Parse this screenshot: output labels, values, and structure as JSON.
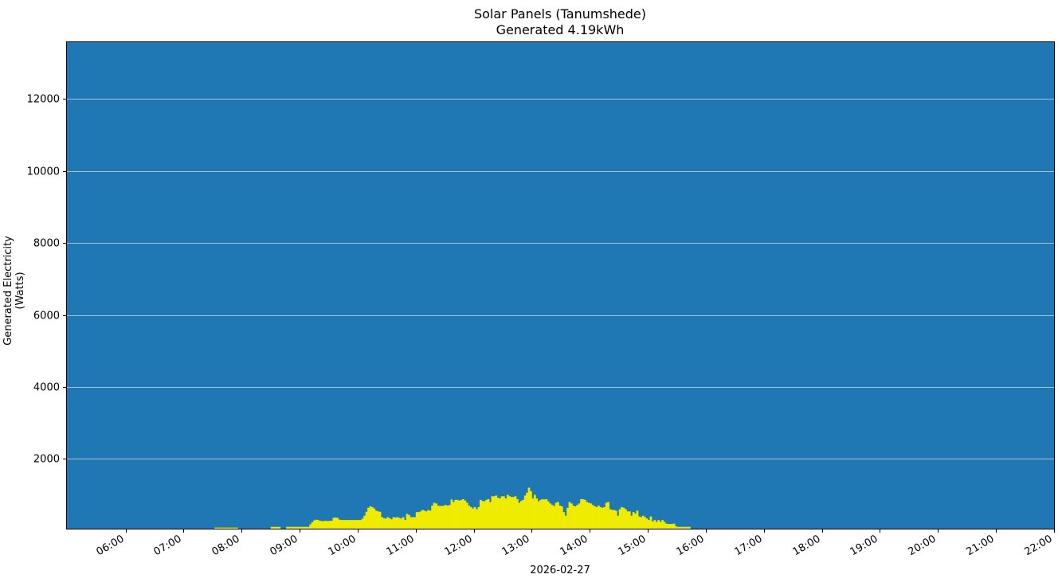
{
  "chart": {
    "title": "Solar Panels (Tanumshede)",
    "subtitle": "Generated 4.19kWh",
    "xlabel": "2026-02-27",
    "ylabel": "Generated Electricity (Watts)"
  },
  "colors": {
    "background": "#1f77b4",
    "bar": "#f0ec00",
    "bar_alt": "#f2e000",
    "grid": "#dcdcdc",
    "axis": "#000000"
  },
  "chart_data": {
    "type": "bar",
    "title": "Solar Panels (Tanumshede)\nGenerated 4.19kWh",
    "xlabel": "2026-02-27",
    "ylabel": "Generated Electricity (Watts)",
    "x_ticks": [
      "06:00",
      "07:00",
      "08:00",
      "09:00",
      "10:00",
      "11:00",
      "12:00",
      "13:00",
      "14:00",
      "15:00",
      "16:00",
      "17:00",
      "18:00",
      "19:00",
      "20:00",
      "21:00",
      "22:00"
    ],
    "y_ticks": [
      2000,
      4000,
      6000,
      8000,
      10000,
      12000
    ],
    "ylim": [
      60,
      13600
    ],
    "xlim": [
      "04:59",
      "22:00"
    ],
    "grid": "horizontal",
    "bar_width_minutes": 2,
    "series": [
      {
        "name": "Generated Electricity (Watts)",
        "points": [
          [
            "07:32",
            90
          ],
          [
            "07:34",
            90
          ],
          [
            "07:36",
            90
          ],
          [
            "07:38",
            90
          ],
          [
            "07:40",
            90
          ],
          [
            "07:42",
            90
          ],
          [
            "07:44",
            90
          ],
          [
            "07:46",
            90
          ],
          [
            "07:48",
            90
          ],
          [
            "07:50",
            90
          ],
          [
            "07:52",
            90
          ],
          [
            "07:54",
            90
          ],
          [
            "08:30",
            110
          ],
          [
            "08:32",
            110
          ],
          [
            "08:34",
            110
          ],
          [
            "08:36",
            110
          ],
          [
            "08:38",
            110
          ],
          [
            "08:46",
            110
          ],
          [
            "08:48",
            110
          ],
          [
            "08:50",
            110
          ],
          [
            "08:52",
            110
          ],
          [
            "08:54",
            110
          ],
          [
            "08:56",
            110
          ],
          [
            "08:58",
            110
          ],
          [
            "09:00",
            110
          ],
          [
            "09:02",
            110
          ],
          [
            "09:04",
            110
          ],
          [
            "09:06",
            110
          ],
          [
            "09:08",
            110
          ],
          [
            "09:10",
            180
          ],
          [
            "09:12",
            240
          ],
          [
            "09:14",
            290
          ],
          [
            "09:16",
            310
          ],
          [
            "09:18",
            300
          ],
          [
            "09:20",
            280
          ],
          [
            "09:22",
            270
          ],
          [
            "09:24",
            270
          ],
          [
            "09:26",
            280
          ],
          [
            "09:28",
            270
          ],
          [
            "09:30",
            280
          ],
          [
            "09:32",
            280
          ],
          [
            "09:34",
            360
          ],
          [
            "09:36",
            370
          ],
          [
            "09:38",
            360
          ],
          [
            "09:40",
            310
          ],
          [
            "09:42",
            300
          ],
          [
            "09:44",
            300
          ],
          [
            "09:46",
            300
          ],
          [
            "09:48",
            300
          ],
          [
            "09:50",
            300
          ],
          [
            "09:52",
            300
          ],
          [
            "09:54",
            300
          ],
          [
            "09:56",
            300
          ],
          [
            "09:58",
            300
          ],
          [
            "10:00",
            300
          ],
          [
            "10:02",
            300
          ],
          [
            "10:04",
            340
          ],
          [
            "10:06",
            420
          ],
          [
            "10:08",
            530
          ],
          [
            "10:10",
            640
          ],
          [
            "10:12",
            680
          ],
          [
            "10:14",
            660
          ],
          [
            "10:16",
            620
          ],
          [
            "10:18",
            560
          ],
          [
            "10:20",
            540
          ],
          [
            "10:22",
            530
          ],
          [
            "10:24",
            380
          ],
          [
            "10:26",
            350
          ],
          [
            "10:28",
            340
          ],
          [
            "10:30",
            380
          ],
          [
            "10:32",
            350
          ],
          [
            "10:34",
            320
          ],
          [
            "10:36",
            380
          ],
          [
            "10:38",
            370
          ],
          [
            "10:40",
            380
          ],
          [
            "10:42",
            360
          ],
          [
            "10:44",
            340
          ],
          [
            "10:46",
            380
          ],
          [
            "10:48",
            300
          ],
          [
            "10:50",
            470
          ],
          [
            "10:52",
            440
          ],
          [
            "10:54",
            380
          ],
          [
            "10:56",
            380
          ],
          [
            "10:58",
            380
          ],
          [
            "11:00",
            520
          ],
          [
            "11:02",
            520
          ],
          [
            "11:04",
            540
          ],
          [
            "11:06",
            580
          ],
          [
            "11:08",
            560
          ],
          [
            "11:10",
            540
          ],
          [
            "11:12",
            580
          ],
          [
            "11:14",
            560
          ],
          [
            "11:16",
            700
          ],
          [
            "11:18",
            780
          ],
          [
            "11:20",
            760
          ],
          [
            "11:22",
            700
          ],
          [
            "11:24",
            690
          ],
          [
            "11:26",
            690
          ],
          [
            "11:28",
            700
          ],
          [
            "11:30",
            720
          ],
          [
            "11:32",
            700
          ],
          [
            "11:34",
            720
          ],
          [
            "11:36",
            870
          ],
          [
            "11:38",
            800
          ],
          [
            "11:40",
            860
          ],
          [
            "11:42",
            860
          ],
          [
            "11:44",
            840
          ],
          [
            "11:46",
            860
          ],
          [
            "11:48",
            880
          ],
          [
            "11:50",
            840
          ],
          [
            "11:52",
            780
          ],
          [
            "11:54",
            700
          ],
          [
            "11:56",
            660
          ],
          [
            "11:58",
            620
          ],
          [
            "12:00",
            660
          ],
          [
            "12:02",
            600
          ],
          [
            "12:04",
            660
          ],
          [
            "12:06",
            860
          ],
          [
            "12:08",
            830
          ],
          [
            "12:10",
            820
          ],
          [
            "12:12",
            860
          ],
          [
            "12:14",
            880
          ],
          [
            "12:16",
            800
          ],
          [
            "12:18",
            960
          ],
          [
            "12:20",
            960
          ],
          [
            "12:22",
            980
          ],
          [
            "12:24",
            920
          ],
          [
            "12:26",
            900
          ],
          [
            "12:28",
            960
          ],
          [
            "12:30",
            960
          ],
          [
            "12:32",
            900
          ],
          [
            "12:34",
            1000
          ],
          [
            "12:36",
            960
          ],
          [
            "12:38",
            940
          ],
          [
            "12:40",
            940
          ],
          [
            "12:42",
            960
          ],
          [
            "12:44",
            880
          ],
          [
            "12:46",
            780
          ],
          [
            "12:48",
            830
          ],
          [
            "12:50",
            860
          ],
          [
            "12:52",
            980
          ],
          [
            "12:54",
            1060
          ],
          [
            "12:56",
            1200
          ],
          [
            "12:58",
            1100
          ],
          [
            "13:00",
            900
          ],
          [
            "13:02",
            1000
          ],
          [
            "13:04",
            900
          ],
          [
            "13:06",
            820
          ],
          [
            "13:08",
            860
          ],
          [
            "13:10",
            880
          ],
          [
            "13:12",
            870
          ],
          [
            "13:14",
            880
          ],
          [
            "13:16",
            820
          ],
          [
            "13:18",
            760
          ],
          [
            "13:20",
            720
          ],
          [
            "13:22",
            690
          ],
          [
            "13:24",
            780
          ],
          [
            "13:26",
            800
          ],
          [
            "13:28",
            700
          ],
          [
            "13:30",
            680
          ],
          [
            "13:32",
            520
          ],
          [
            "13:34",
            420
          ],
          [
            "13:36",
            640
          ],
          [
            "13:38",
            800
          ],
          [
            "13:40",
            760
          ],
          [
            "13:42",
            700
          ],
          [
            "13:44",
            680
          ],
          [
            "13:46",
            720
          ],
          [
            "13:48",
            760
          ],
          [
            "13:50",
            880
          ],
          [
            "13:52",
            880
          ],
          [
            "13:54",
            860
          ],
          [
            "13:56",
            800
          ],
          [
            "13:58",
            780
          ],
          [
            "14:00",
            760
          ],
          [
            "14:02",
            720
          ],
          [
            "14:04",
            680
          ],
          [
            "14:06",
            660
          ],
          [
            "14:08",
            700
          ],
          [
            "14:10",
            660
          ],
          [
            "14:12",
            640
          ],
          [
            "14:14",
            660
          ],
          [
            "14:16",
            780
          ],
          [
            "14:18",
            800
          ],
          [
            "14:20",
            600
          ],
          [
            "14:22",
            580
          ],
          [
            "14:24",
            580
          ],
          [
            "14:26",
            560
          ],
          [
            "14:28",
            420
          ],
          [
            "14:30",
            600
          ],
          [
            "14:32",
            660
          ],
          [
            "14:34",
            640
          ],
          [
            "14:36",
            600
          ],
          [
            "14:38",
            540
          ],
          [
            "14:40",
            540
          ],
          [
            "14:42",
            420
          ],
          [
            "14:44",
            520
          ],
          [
            "14:46",
            480
          ],
          [
            "14:48",
            560
          ],
          [
            "14:50",
            400
          ],
          [
            "14:52",
            380
          ],
          [
            "14:54",
            420
          ],
          [
            "14:56",
            380
          ],
          [
            "14:58",
            340
          ],
          [
            "15:00",
            300
          ],
          [
            "15:02",
            400
          ],
          [
            "15:04",
            260
          ],
          [
            "15:06",
            300
          ],
          [
            "15:08",
            250
          ],
          [
            "15:10",
            300
          ],
          [
            "15:12",
            250
          ],
          [
            "15:14",
            300
          ],
          [
            "15:16",
            250
          ],
          [
            "15:18",
            200
          ],
          [
            "15:20",
            190
          ],
          [
            "15:22",
            190
          ],
          [
            "15:24",
            190
          ],
          [
            "15:26",
            200
          ],
          [
            "15:28",
            130
          ],
          [
            "15:30",
            110
          ],
          [
            "15:32",
            110
          ],
          [
            "15:34",
            110
          ],
          [
            "15:36",
            110
          ],
          [
            "15:38",
            110
          ],
          [
            "15:40",
            110
          ],
          [
            "15:42",
            110
          ]
        ]
      }
    ]
  }
}
